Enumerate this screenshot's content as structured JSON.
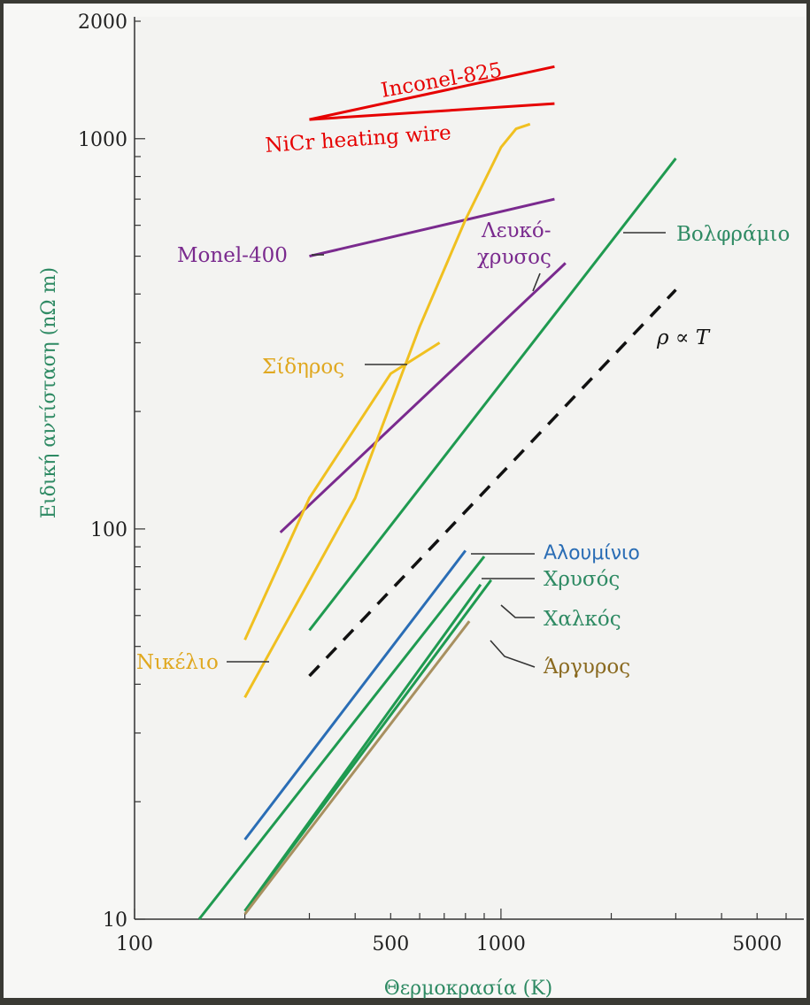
{
  "chart_data": {
    "type": "line",
    "title": "",
    "xlabel": "Θερμοκρασία (K)",
    "ylabel": "Ειδική αντίσταση (nΩ m)",
    "xscale": "log",
    "yscale": "log",
    "xlim": [
      100,
      6000
    ],
    "ylim": [
      10,
      2000
    ],
    "x_ticks": [
      {
        "value": 100,
        "label": "100"
      },
      {
        "value": 500,
        "label": "500"
      },
      {
        "value": 1000,
        "label": "1000"
      },
      {
        "value": 5000,
        "label": "5000"
      }
    ],
    "y_ticks": [
      {
        "value": 10,
        "label": "10"
      },
      {
        "value": 100,
        "label": "100"
      },
      {
        "value": 1000,
        "label": "1000"
      },
      {
        "value": 2000,
        "label": "2000"
      }
    ],
    "grid": false,
    "series": [
      {
        "name": "Inconel-825",
        "color": "#e60000",
        "x": [
          300,
          1400
        ],
        "y": [
          1120,
          1530
        ]
      },
      {
        "name": "NiCr heating wire",
        "color": "#e60000",
        "x": [
          300,
          1400
        ],
        "y": [
          1120,
          1230
        ]
      },
      {
        "name": "Monel-400",
        "color": "#7a2a8e",
        "x": [
          300,
          1400
        ],
        "y": [
          500,
          700
        ]
      },
      {
        "name": "Λευκό-χρυσος",
        "color": "#7a2a8e",
        "x": [
          250,
          1500
        ],
        "y": [
          98,
          480
        ]
      },
      {
        "name": "Σίδηρος",
        "color": "#f0c020",
        "x": [
          200,
          400,
          600,
          800,
          1000,
          1100,
          1200
        ],
        "y": [
          37,
          120,
          330,
          620,
          950,
          1060,
          1090
        ]
      },
      {
        "name": "Νικέλιο",
        "color": "#f0c020",
        "x": [
          200,
          300,
          500,
          680
        ],
        "y": [
          52,
          120,
          250,
          300
        ]
      },
      {
        "name": "Βολφράμιο",
        "color": "#1f9a50",
        "x": [
          300,
          3000
        ],
        "y": [
          55,
          890
        ]
      },
      {
        "name": "Βολφράμιο",
        "color": "#1f9a50",
        "x": [
          150,
          900
        ],
        "y": [
          10,
          85
        ]
      },
      {
        "name": "Αλουμίνιο",
        "color": "#2a6db5",
        "x": [
          200,
          800
        ],
        "y": [
          16,
          88
        ]
      },
      {
        "name": "Χρυσός",
        "color": "#1f9a50",
        "x": [
          200,
          940
        ],
        "y": [
          10.5,
          74
        ]
      },
      {
        "name": "Χαλκός",
        "color": "#1f9a50",
        "x": [
          200,
          880
        ],
        "y": [
          10.5,
          72
        ]
      },
      {
        "name": "Άργυρος",
        "color": "#a89060",
        "x": [
          200,
          820
        ],
        "y": [
          10.3,
          58
        ]
      },
      {
        "name": "ρ ∝ T",
        "color": "#111111",
        "style": "dashed",
        "x": [
          300,
          3000
        ],
        "y": [
          42,
          410
        ]
      }
    ],
    "annotations": [
      {
        "text": "Inconel-825",
        "color": "#e60000"
      },
      {
        "text": "NiCr heating wire",
        "color": "#e60000"
      },
      {
        "text": "Monel-400",
        "color": "#7a2a8e"
      },
      {
        "text": "Λευκό-",
        "color": "#7a2a8e"
      },
      {
        "text": "χρυσος",
        "color": "#7a2a8e"
      },
      {
        "text": "Σίδηρος",
        "color": "#e0a820"
      },
      {
        "text": "Νικέλιο",
        "color": "#e0a820"
      },
      {
        "text": "Βολφράμιο",
        "color": "#2e8a63"
      },
      {
        "text": "Αλουμίνιο",
        "color": "#2a6db5"
      },
      {
        "text": "Χρυσός",
        "color": "#2e8a63"
      },
      {
        "text": "Χαλκός",
        "color": "#2e8a63"
      },
      {
        "text": "Άργυρος",
        "color": "#8a6a20"
      },
      {
        "text": "ρ ∝ T",
        "color": "#111111"
      }
    ]
  }
}
